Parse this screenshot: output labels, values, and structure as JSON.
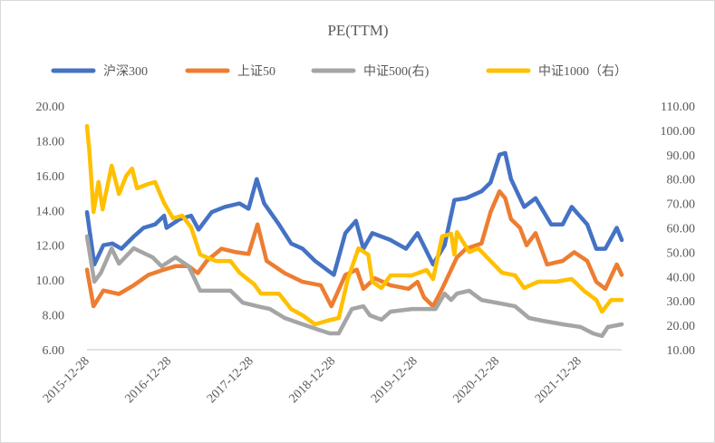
{
  "chart_data": {
    "type": "line",
    "title": "PE(TTM)",
    "x_unit": "years since 2015-12-28",
    "x_tick_labels": [
      "2015-12-28",
      "2016-12-28",
      "2017-12-28",
      "2018-12-28",
      "2019-12-28",
      "2020-12-28",
      "2021-12-28"
    ],
    "xlim": [
      0,
      6.52
    ],
    "y_left": {
      "ylim": [
        6,
        20
      ],
      "ticks": [
        "20.00",
        "18.00",
        "16.00",
        "14.00",
        "12.00",
        "10.00",
        "8.00",
        "6.00"
      ]
    },
    "y_right": {
      "ylim": [
        10,
        110
      ],
      "ticks": [
        "110.00",
        "100.00",
        "90.00",
        "80.00",
        "70.00",
        "60.00",
        "50.00",
        "40.00",
        "30.00",
        "20.00",
        "10.00"
      ]
    },
    "grid": false,
    "legend_position": "top",
    "series": [
      {
        "name": "沪深300",
        "axis": "left",
        "color": "#4472c4",
        "points": [
          [
            0,
            13.9
          ],
          [
            0.09,
            10.9
          ],
          [
            0.2,
            12.0
          ],
          [
            0.31,
            12.1
          ],
          [
            0.42,
            11.8
          ],
          [
            0.57,
            12.5
          ],
          [
            0.69,
            13.0
          ],
          [
            0.83,
            13.2
          ],
          [
            0.94,
            13.7
          ],
          [
            0.97,
            13.0
          ],
          [
            1.13,
            13.5
          ],
          [
            1.27,
            13.7
          ],
          [
            1.36,
            12.9
          ],
          [
            1.52,
            13.9
          ],
          [
            1.68,
            14.2
          ],
          [
            1.86,
            14.4
          ],
          [
            1.97,
            14.1
          ],
          [
            2.07,
            15.8
          ],
          [
            2.16,
            14.4
          ],
          [
            2.34,
            13.2
          ],
          [
            2.49,
            12.1
          ],
          [
            2.63,
            11.8
          ],
          [
            2.78,
            11.1
          ],
          [
            3.01,
            10.3
          ],
          [
            3.15,
            12.7
          ],
          [
            3.28,
            13.4
          ],
          [
            3.37,
            11.8
          ],
          [
            3.48,
            12.7
          ],
          [
            3.7,
            12.3
          ],
          [
            3.89,
            11.8
          ],
          [
            4.03,
            12.7
          ],
          [
            4.22,
            10.9
          ],
          [
            4.36,
            12.0
          ],
          [
            4.48,
            14.6
          ],
          [
            4.62,
            14.7
          ],
          [
            4.81,
            15.1
          ],
          [
            4.92,
            15.6
          ],
          [
            5.03,
            17.2
          ],
          [
            5.1,
            17.3
          ],
          [
            5.17,
            15.8
          ],
          [
            5.33,
            14.2
          ],
          [
            5.47,
            14.7
          ],
          [
            5.66,
            13.2
          ],
          [
            5.8,
            13.2
          ],
          [
            5.91,
            14.2
          ],
          [
            6.1,
            13.2
          ],
          [
            6.21,
            11.8
          ],
          [
            6.32,
            11.8
          ],
          [
            6.46,
            13.0
          ],
          [
            6.52,
            12.3
          ]
        ]
      },
      {
        "name": "上证50",
        "axis": "left",
        "color": "#ed7d31",
        "points": [
          [
            0,
            10.6
          ],
          [
            0.08,
            8.5
          ],
          [
            0.2,
            9.4
          ],
          [
            0.39,
            9.2
          ],
          [
            0.57,
            9.7
          ],
          [
            0.75,
            10.3
          ],
          [
            0.94,
            10.6
          ],
          [
            1.08,
            10.8
          ],
          [
            1.24,
            10.8
          ],
          [
            1.35,
            10.4
          ],
          [
            1.46,
            11.1
          ],
          [
            1.64,
            11.8
          ],
          [
            1.82,
            11.6
          ],
          [
            1.97,
            11.5
          ],
          [
            2.08,
            13.2
          ],
          [
            2.19,
            11.1
          ],
          [
            2.41,
            10.4
          ],
          [
            2.63,
            9.9
          ],
          [
            2.85,
            9.7
          ],
          [
            2.98,
            8.5
          ],
          [
            3.15,
            10.3
          ],
          [
            3.29,
            10.6
          ],
          [
            3.37,
            9.5
          ],
          [
            3.51,
            10.1
          ],
          [
            3.7,
            9.7
          ],
          [
            3.92,
            9.5
          ],
          [
            4.03,
            9.9
          ],
          [
            4.11,
            9.0
          ],
          [
            4.22,
            8.5
          ],
          [
            4.33,
            9.5
          ],
          [
            4.51,
            11.3
          ],
          [
            4.62,
            11.8
          ],
          [
            4.81,
            12.1
          ],
          [
            4.92,
            13.9
          ],
          [
            5.03,
            15.1
          ],
          [
            5.1,
            14.7
          ],
          [
            5.17,
            13.5
          ],
          [
            5.28,
            13.0
          ],
          [
            5.36,
            12.0
          ],
          [
            5.47,
            12.7
          ],
          [
            5.61,
            10.9
          ],
          [
            5.8,
            11.1
          ],
          [
            5.94,
            11.6
          ],
          [
            6.1,
            11.1
          ],
          [
            6.21,
            9.9
          ],
          [
            6.32,
            9.5
          ],
          [
            6.46,
            10.9
          ],
          [
            6.52,
            10.3
          ]
        ]
      },
      {
        "name": "中证500(右)",
        "axis": "right",
        "color": "#a5a5a5",
        "points": [
          [
            0,
            56.5
          ],
          [
            0.09,
            37.9
          ],
          [
            0.17,
            41.6
          ],
          [
            0.3,
            51.6
          ],
          [
            0.39,
            45.3
          ],
          [
            0.57,
            51.6
          ],
          [
            0.8,
            47.9
          ],
          [
            0.91,
            44.2
          ],
          [
            1.08,
            47.9
          ],
          [
            1.24,
            44.2
          ],
          [
            1.38,
            34.2
          ],
          [
            1.57,
            34.2
          ],
          [
            1.75,
            34.2
          ],
          [
            1.9,
            29.3
          ],
          [
            2.08,
            27.8
          ],
          [
            2.23,
            26.7
          ],
          [
            2.41,
            23.0
          ],
          [
            2.63,
            20.4
          ],
          [
            2.82,
            18.2
          ],
          [
            2.96,
            16.7
          ],
          [
            3.07,
            16.7
          ],
          [
            3.23,
            26.7
          ],
          [
            3.37,
            27.8
          ],
          [
            3.45,
            24.1
          ],
          [
            3.59,
            22.3
          ],
          [
            3.7,
            25.6
          ],
          [
            3.96,
            26.7
          ],
          [
            4.11,
            26.7
          ],
          [
            4.25,
            26.7
          ],
          [
            4.36,
            33.0
          ],
          [
            4.44,
            30.4
          ],
          [
            4.51,
            33.0
          ],
          [
            4.66,
            34.2
          ],
          [
            4.81,
            30.4
          ],
          [
            4.99,
            29.3
          ],
          [
            5.22,
            27.8
          ],
          [
            5.39,
            23.0
          ],
          [
            5.55,
            21.9
          ],
          [
            5.8,
            20.4
          ],
          [
            6.02,
            19.3
          ],
          [
            6.17,
            16.7
          ],
          [
            6.28,
            15.6
          ],
          [
            6.35,
            19.3
          ],
          [
            6.52,
            20.4
          ]
        ]
      },
      {
        "name": "中证1000（右）",
        "axis": "right",
        "color": "#ffc000",
        "points": [
          [
            0,
            101.8
          ],
          [
            0.03,
            91.0
          ],
          [
            0.08,
            66.5
          ],
          [
            0.14,
            78.8
          ],
          [
            0.19,
            67.6
          ],
          [
            0.3,
            85.5
          ],
          [
            0.39,
            73.9
          ],
          [
            0.48,
            81.4
          ],
          [
            0.55,
            84.3
          ],
          [
            0.61,
            76.2
          ],
          [
            0.72,
            77.7
          ],
          [
            0.83,
            78.8
          ],
          [
            0.94,
            70.2
          ],
          [
            1.05,
            63.9
          ],
          [
            1.16,
            65.0
          ],
          [
            1.27,
            60.2
          ],
          [
            1.38,
            49.0
          ],
          [
            1.57,
            46.4
          ],
          [
            1.75,
            46.4
          ],
          [
            1.86,
            41.6
          ],
          [
            2.04,
            36.8
          ],
          [
            2.12,
            33.0
          ],
          [
            2.34,
            33.0
          ],
          [
            2.49,
            26.7
          ],
          [
            2.63,
            24.1
          ],
          [
            2.78,
            20.4
          ],
          [
            2.93,
            21.9
          ],
          [
            3.07,
            23.0
          ],
          [
            3.18,
            39.0
          ],
          [
            3.31,
            51.6
          ],
          [
            3.43,
            49.0
          ],
          [
            3.48,
            37.9
          ],
          [
            3.59,
            35.3
          ],
          [
            3.7,
            40.5
          ],
          [
            3.96,
            40.5
          ],
          [
            4.14,
            42.7
          ],
          [
            4.22,
            39.0
          ],
          [
            4.33,
            56.5
          ],
          [
            4.44,
            57.6
          ],
          [
            4.48,
            49.0
          ],
          [
            4.51,
            58.3
          ],
          [
            4.66,
            50.1
          ],
          [
            4.77,
            51.6
          ],
          [
            4.92,
            46.4
          ],
          [
            5.06,
            41.6
          ],
          [
            5.22,
            40.5
          ],
          [
            5.33,
            35.3
          ],
          [
            5.5,
            37.9
          ],
          [
            5.72,
            37.9
          ],
          [
            5.91,
            39.0
          ],
          [
            6.06,
            34.2
          ],
          [
            6.21,
            30.4
          ],
          [
            6.28,
            25.6
          ],
          [
            6.39,
            30.4
          ],
          [
            6.52,
            30.4
          ]
        ]
      }
    ]
  }
}
